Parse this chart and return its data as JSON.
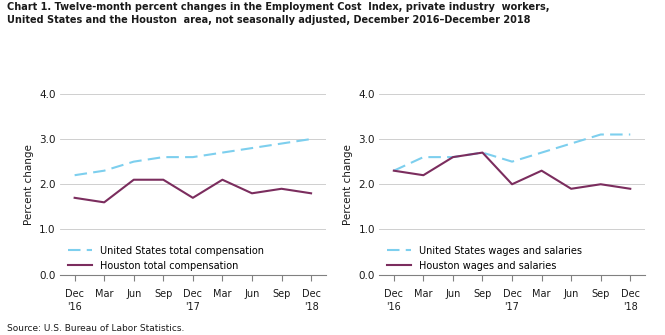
{
  "title_line1": "Chart 1. Twelve-month percent changes in the Employment Cost  Index, private industry  workers,",
  "title_line2": "United States and the Houston  area, not seasonally adjusted, December 2016–December 2018",
  "source": "Source: U.S. Bureau of Labor Statistics.",
  "ylabel": "Percent change",
  "ylim": [
    0.0,
    4.0
  ],
  "yticks": [
    0.0,
    1.0,
    2.0,
    3.0,
    4.0
  ],
  "left_us_values": [
    2.2,
    2.3,
    2.5,
    2.6,
    2.6,
    2.7,
    2.8,
    2.9,
    3.0
  ],
  "left_houston_values": [
    1.7,
    1.6,
    2.1,
    2.1,
    1.7,
    2.1,
    1.8,
    1.9,
    1.8
  ],
  "left_legend1": "United States total compensation",
  "left_legend2": "Houston total compensation",
  "right_us_values": [
    2.3,
    2.6,
    2.6,
    2.7,
    2.5,
    2.7,
    2.9,
    3.1,
    3.1
  ],
  "right_houston_values": [
    2.3,
    2.2,
    2.6,
    2.7,
    2.0,
    2.3,
    1.9,
    2.0,
    1.9
  ],
  "right_legend1": "United States wages and salaries",
  "right_legend2": "Houston wages and salaries",
  "us_color": "#7dcfee",
  "houston_color": "#7b2d5e",
  "background_color": "#ffffff",
  "grid_color": "#c8c8c8",
  "month_labels": [
    "Dec",
    "Mar",
    "Jun",
    "Sep",
    "Dec",
    "Mar",
    "Jun",
    "Sep",
    "Dec"
  ],
  "year_positions": [
    [
      0,
      "'16"
    ],
    [
      4,
      "'17"
    ],
    [
      8,
      "'18"
    ]
  ]
}
